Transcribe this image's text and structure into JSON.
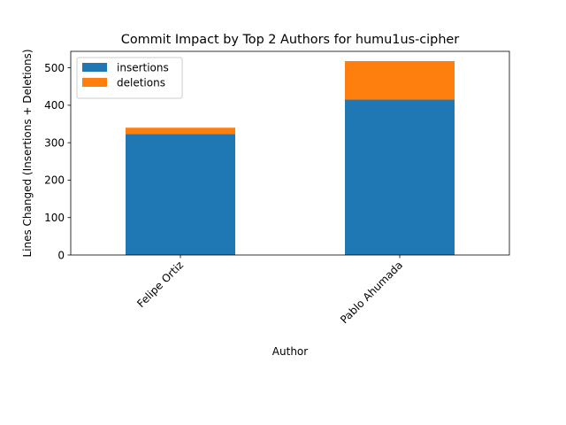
{
  "chart_data": {
    "type": "bar",
    "stacked": true,
    "title": "Commit Impact by Top 2 Authors for humu1us-cipher",
    "xlabel": "Author",
    "ylabel": "Lines Changed (Insertions + Deletions)",
    "categories": [
      "Felipe Ortiz",
      "Pablo Ahumada"
    ],
    "series": [
      {
        "name": "insertions",
        "color": "#1f77b4",
        "values": [
          323,
          415
        ]
      },
      {
        "name": "deletions",
        "color": "#ff7f0e",
        "values": [
          17,
          103
        ]
      }
    ],
    "ylim": [
      0,
      544
    ],
    "yticks": [
      0,
      100,
      200,
      300,
      400,
      500
    ],
    "grid": false,
    "legend_position": "top-left"
  }
}
